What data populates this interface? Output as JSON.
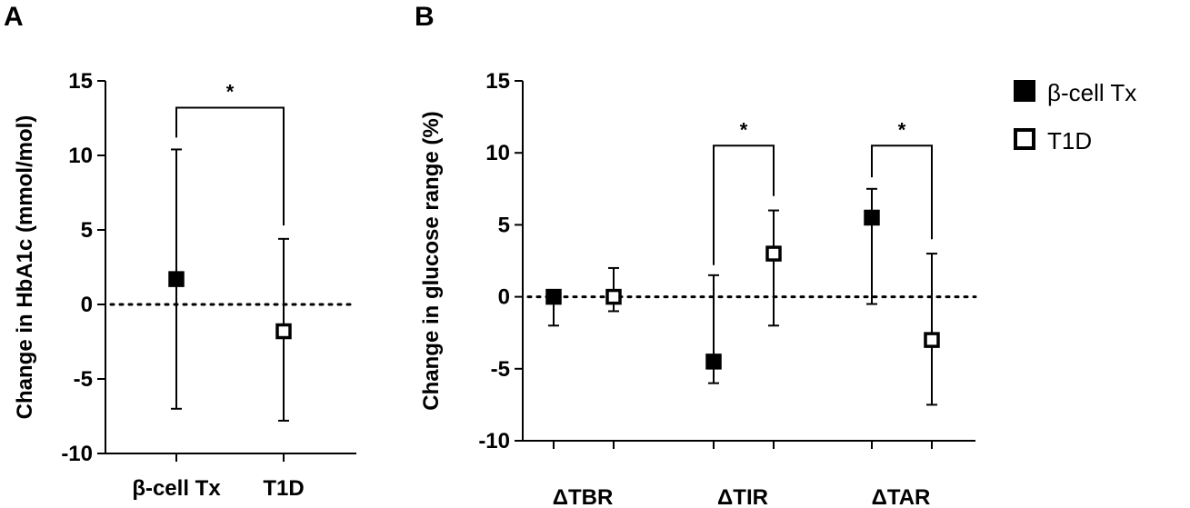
{
  "panels": {
    "a": {
      "letter": "A"
    },
    "b": {
      "letter": "B"
    }
  },
  "legend": {
    "items": [
      {
        "label": "β-cell Tx",
        "fill": "#000000"
      },
      {
        "label": "T1D",
        "fill": "#ffffff"
      }
    ]
  },
  "chart_data": [
    {
      "type": "scatter",
      "title": "",
      "ylabel": "Change in HbA1c  (mmol/mol)",
      "xlabel": "",
      "ylim": [
        -10,
        15
      ],
      "yticks": [
        "15",
        "10",
        "5",
        "0",
        "-5",
        "-10"
      ],
      "ytick_values": [
        15,
        10,
        5,
        0,
        -5,
        -10
      ],
      "categories": [
        "β-cell Tx",
        "T1D"
      ],
      "reference_line": 0,
      "series": [
        {
          "name": "β-cell Tx",
          "fill": "#000000",
          "values": [
            1.7,
            null
          ],
          "lower": [
            -7.0,
            null
          ],
          "upper": [
            10.4,
            null
          ]
        },
        {
          "name": "T1D",
          "fill": "#ffffff",
          "values": [
            null,
            -1.8
          ],
          "lower": [
            null,
            -7.8
          ],
          "upper": [
            null,
            4.4
          ]
        }
      ],
      "significance": [
        {
          "label": "*",
          "from": "β-cell Tx",
          "to": "T1D"
        }
      ]
    },
    {
      "type": "scatter",
      "title": "",
      "ylabel": "Change in glucose range  (%)",
      "xlabel": "",
      "ylim": [
        -10,
        15
      ],
      "yticks": [
        "15",
        "10",
        "5",
        "0",
        "-5",
        "-10"
      ],
      "ytick_values": [
        15,
        10,
        5,
        0,
        -5,
        -10
      ],
      "categories": [
        "ΔTBR",
        "ΔTIR",
        "ΔTAR"
      ],
      "reference_line": 0,
      "series": [
        {
          "name": "β-cell Tx",
          "fill": "#000000",
          "values": [
            0,
            -4.5,
            5.5
          ],
          "lower": [
            -2,
            -6,
            -0.5
          ],
          "upper": [
            0,
            1.5,
            7.5
          ]
        },
        {
          "name": "T1D",
          "fill": "#ffffff",
          "values": [
            0,
            3,
            -3
          ],
          "lower": [
            -1,
            -2,
            -7.5
          ],
          "upper": [
            2,
            6,
            3
          ]
        }
      ],
      "significance": [
        {
          "label": "*",
          "category": "ΔTIR"
        },
        {
          "label": "*",
          "category": "ΔTAR"
        }
      ]
    }
  ]
}
